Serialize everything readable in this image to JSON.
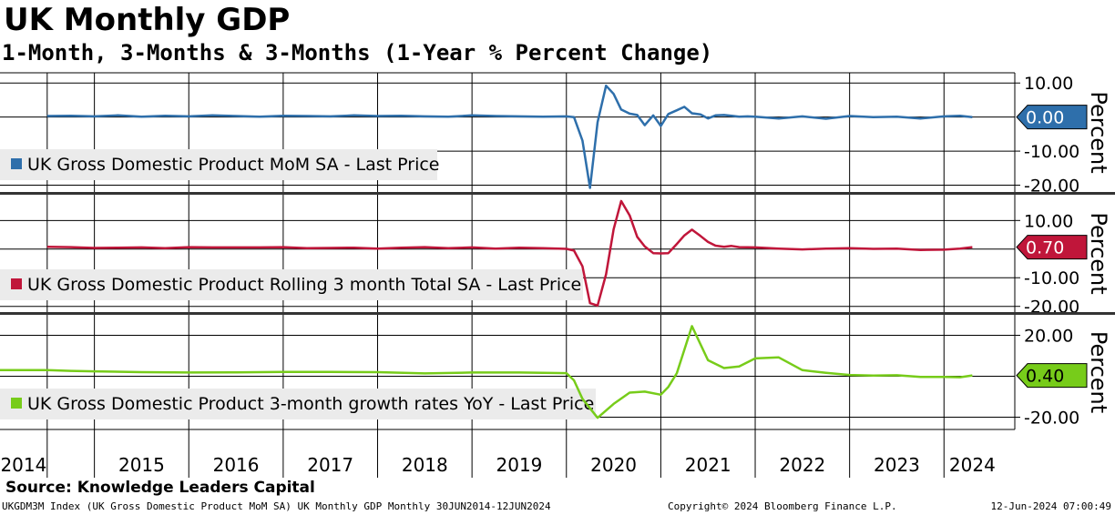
{
  "header": {
    "title": "UK Monthly GDP",
    "subtitle": "1-Month, 3-Months & 3-Months (1-Year % Percent Change)"
  },
  "footer": {
    "source": "Source: Knowledge Leaders Capital",
    "security": "UKGDM3M Index (UK Gross Domestic Product MoM SA) UK Monthly GDP  Monthly 30JUN2014-12JUN2024",
    "copyright": "Copyright© 2024 Bloomberg Finance L.P.",
    "timestamp": "12-Jun-2024 07:00:49"
  },
  "colors": {
    "mom": "#2e6fab",
    "rolling3m": "#c0163a",
    "yoy": "#77cc1a",
    "grid": "#000000",
    "legend_bg": "#ebebeb"
  },
  "chart_data": [
    {
      "type": "line",
      "panel": "top",
      "series": [
        {
          "name": "UK Gross Domestic Product MoM SA - Last Price",
          "x": [
            2014.5,
            2014.75,
            2015.0,
            2015.25,
            2015.5,
            2015.75,
            2016.0,
            2016.25,
            2016.5,
            2016.75,
            2017.0,
            2017.25,
            2017.5,
            2017.75,
            2018.0,
            2018.25,
            2018.5,
            2018.75,
            2019.0,
            2019.25,
            2019.5,
            2019.75,
            2020.0,
            2020.08,
            2020.17,
            2020.25,
            2020.33,
            2020.42,
            2020.5,
            2020.58,
            2020.67,
            2020.75,
            2020.83,
            2020.92,
            2021.0,
            2021.08,
            2021.17,
            2021.25,
            2021.33,
            2021.42,
            2021.5,
            2021.58,
            2021.67,
            2021.75,
            2021.83,
            2021.92,
            2022.0,
            2022.25,
            2022.5,
            2022.75,
            2023.0,
            2023.25,
            2023.5,
            2023.75,
            2024.0,
            2024.17,
            2024.3
          ],
          "values": [
            0.3,
            0.4,
            0.2,
            0.5,
            0.1,
            0.4,
            0.2,
            0.5,
            0.3,
            0.1,
            0.4,
            0.3,
            0.2,
            0.5,
            0.3,
            0.4,
            0.2,
            0.1,
            0.5,
            0.3,
            0.2,
            0.1,
            0.2,
            0.0,
            -6.9,
            -20.8,
            -1.5,
            9.2,
            6.8,
            2.2,
            1.0,
            0.6,
            -2.4,
            0.5,
            -2.6,
            0.9,
            2.0,
            3.0,
            1.1,
            0.8,
            -0.4,
            0.5,
            0.6,
            0.4,
            0.1,
            0.2,
            0.1,
            -0.4,
            0.2,
            -0.5,
            0.3,
            0.0,
            0.1,
            -0.4,
            0.2,
            0.4,
            0.0
          ]
        }
      ],
      "ylabel": "Percent",
      "yticks": [
        "10.00",
        "-10.00",
        "-20.00"
      ],
      "ytick_values": [
        10,
        -10,
        -20
      ],
      "ylim": [
        -22,
        13
      ],
      "last_value": "0.00",
      "last_value_num": 0.0
    },
    {
      "type": "line",
      "panel": "middle",
      "series": [
        {
          "name": "UK Gross Domestic Product Rolling 3 month Total SA - Last Price",
          "x": [
            2014.5,
            2014.75,
            2015.0,
            2015.25,
            2015.5,
            2015.75,
            2016.0,
            2016.25,
            2016.5,
            2016.75,
            2017.0,
            2017.25,
            2017.5,
            2017.75,
            2018.0,
            2018.25,
            2018.5,
            2018.75,
            2019.0,
            2019.25,
            2019.5,
            2019.75,
            2020.0,
            2020.08,
            2020.17,
            2020.25,
            2020.33,
            2020.42,
            2020.5,
            2020.58,
            2020.67,
            2020.75,
            2020.83,
            2020.92,
            2021.0,
            2021.08,
            2021.17,
            2021.25,
            2021.33,
            2021.42,
            2021.5,
            2021.58,
            2021.67,
            2021.75,
            2021.83,
            2022.0,
            2022.25,
            2022.5,
            2022.75,
            2023.0,
            2023.25,
            2023.5,
            2023.75,
            2024.0,
            2024.17,
            2024.3
          ],
          "values": [
            0.8,
            0.7,
            0.4,
            0.5,
            0.6,
            0.3,
            0.7,
            0.6,
            0.6,
            0.6,
            0.7,
            0.3,
            0.4,
            0.5,
            0.2,
            0.5,
            0.7,
            0.3,
            0.6,
            0.2,
            0.5,
            0.3,
            0.1,
            -0.5,
            -6.0,
            -18.9,
            -19.7,
            -8.8,
            6.9,
            16.8,
            11.8,
            4.3,
            0.9,
            -1.4,
            -1.5,
            -1.4,
            1.8,
            4.8,
            6.8,
            4.6,
            2.5,
            1.2,
            0.8,
            1.1,
            0.7,
            0.6,
            0.2,
            -0.1,
            0.2,
            0.3,
            0.1,
            0.2,
            -0.3,
            -0.2,
            0.2,
            0.7
          ]
        }
      ],
      "ylabel": "Percent",
      "yticks": [
        "10.00",
        "-10.00",
        "-20.00"
      ],
      "ytick_values": [
        10,
        -10,
        -20
      ],
      "ylim": [
        -22,
        19
      ],
      "last_value": "0.70",
      "last_value_num": 0.7
    },
    {
      "type": "line",
      "panel": "bottom",
      "series": [
        {
          "name": "UK Gross Domestic Product 3-month growth rates YoY - Last Price",
          "x": [
            2014.0,
            2014.5,
            2014.75,
            2015.0,
            2015.5,
            2016.0,
            2016.5,
            2017.0,
            2017.5,
            2018.0,
            2018.5,
            2019.0,
            2019.5,
            2019.75,
            2020.0,
            2020.08,
            2020.17,
            2020.33,
            2020.5,
            2020.67,
            2020.83,
            2021.0,
            2021.08,
            2021.17,
            2021.33,
            2021.5,
            2021.67,
            2021.83,
            2022.0,
            2022.25,
            2022.5,
            2022.75,
            2023.0,
            2023.25,
            2023.5,
            2023.75,
            2024.0,
            2024.17,
            2024.3
          ],
          "values": [
            3.0,
            3.0,
            2.6,
            2.4,
            2.0,
            1.8,
            1.9,
            2.1,
            2.1,
            2.0,
            1.4,
            1.8,
            1.8,
            1.7,
            1.5,
            -2.0,
            -11.0,
            -20.3,
            -13.5,
            -8.0,
            -7.5,
            -9.0,
            -5.2,
            1.5,
            24.5,
            7.8,
            4.0,
            4.8,
            8.7,
            9.2,
            3.0,
            1.7,
            0.6,
            0.3,
            0.5,
            -0.3,
            -0.3,
            -0.5,
            0.4
          ]
        }
      ],
      "ylabel": "Percent",
      "yticks": [
        "20.00",
        "-20.00"
      ],
      "ytick_values": [
        20,
        -20
      ],
      "ylim": [
        -26,
        30
      ],
      "last_value": "0.40",
      "last_value_num": 0.4
    }
  ],
  "x_axis": {
    "labels": [
      "2014",
      "2015",
      "2016",
      "2017",
      "2018",
      "2019",
      "2020",
      "2021",
      "2022",
      "2023",
      "2024"
    ],
    "label_x": [
      2014.25,
      2015.5,
      2016.5,
      2017.5,
      2018.5,
      2019.5,
      2020.5,
      2021.5,
      2022.5,
      2023.5,
      2024.3
    ],
    "gridlines": [
      2014.5,
      2015.0,
      2016.0,
      2017.0,
      2018.0,
      2019.0,
      2020.0,
      2021.0,
      2022.0,
      2023.0,
      2024.0
    ],
    "xlim": [
      2014.0,
      2024.75
    ]
  }
}
